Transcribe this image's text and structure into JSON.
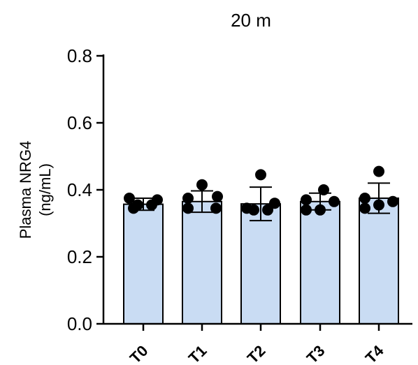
{
  "chart_data": {
    "type": "bar",
    "title": "20 m",
    "xlabel": "",
    "ylabel": [
      "Plasma NRG4",
      "(ng/mL)"
    ],
    "ylim": [
      0,
      0.8
    ],
    "yticks": [
      0.0,
      0.2,
      0.4,
      0.6,
      0.8
    ],
    "ytick_labels": [
      "0.0",
      "0.2",
      "0.4",
      "0.6",
      "0.8"
    ],
    "categories": [
      "T0",
      "T1",
      "T2",
      "T3",
      "T4"
    ],
    "values": [
      0.357,
      0.365,
      0.358,
      0.365,
      0.375
    ],
    "error": [
      0.018,
      0.032,
      0.05,
      0.025,
      0.045
    ],
    "points": [
      [
        0.375,
        0.37,
        0.355,
        0.355,
        0.345
      ],
      [
        0.415,
        0.38,
        0.375,
        0.345,
        0.345
      ],
      [
        0.445,
        0.36,
        0.345,
        0.34,
        0.34
      ],
      [
        0.4,
        0.37,
        0.365,
        0.34,
        0.34
      ],
      [
        0.455,
        0.375,
        0.365,
        0.355,
        0.345
      ]
    ],
    "grid": false,
    "bar_color": "#c9dcf3",
    "edge_color": "#000000",
    "point_color": "#000000"
  }
}
